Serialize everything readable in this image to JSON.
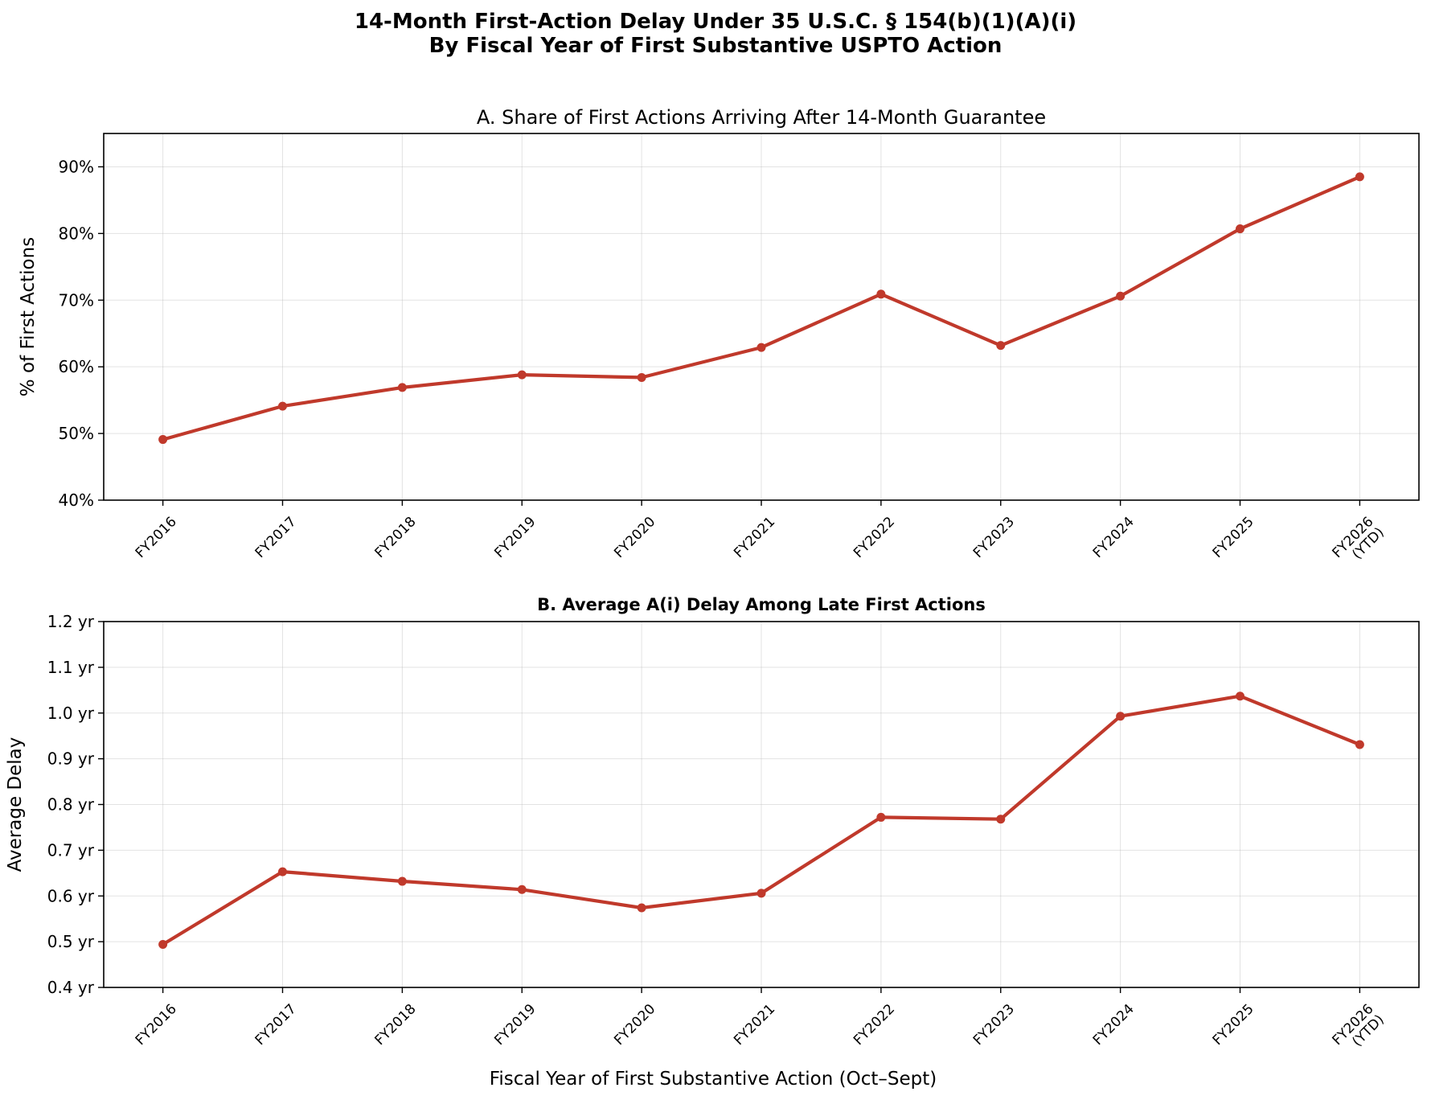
{
  "figure": {
    "title_line1": "14-Month First-Action Delay Under 35 U.S.C. § 154(b)(1)(A)(i)",
    "title_line2": "By Fiscal Year of First Substantive USPTO Action",
    "line_color": "#c0392b"
  },
  "chart_data": [
    {
      "type": "line",
      "title": "A. Share of First Actions Arriving After 14-Month Guarantee",
      "title_bold": false,
      "xlabel": "",
      "ylabel": "% of First Actions",
      "categories": [
        "FY2016",
        "FY2017",
        "FY2018",
        "FY2019",
        "FY2020",
        "FY2021",
        "FY2022",
        "FY2023",
        "FY2024",
        "FY2025",
        "FY2026\n(YTD)"
      ],
      "values": [
        49.1,
        54.1,
        56.9,
        58.8,
        58.4,
        62.9,
        70.9,
        63.2,
        70.6,
        80.7,
        88.5
      ],
      "ylim": [
        40,
        95
      ],
      "yticks": [
        40,
        50,
        60,
        70,
        80,
        90
      ],
      "ytick_labels": [
        "40%",
        "50%",
        "60%",
        "70%",
        "80%",
        "90%"
      ],
      "grid": true,
      "legend": "none"
    },
    {
      "type": "line",
      "title": "B. Average A(i) Delay Among Late First Actions",
      "title_bold": true,
      "xlabel": "Fiscal Year of First Substantive Action (Oct–Sept)",
      "ylabel": "Average Delay",
      "categories": [
        "FY2016",
        "FY2017",
        "FY2018",
        "FY2019",
        "FY2020",
        "FY2021",
        "FY2022",
        "FY2023",
        "FY2024",
        "FY2025",
        "FY2026\n(YTD)"
      ],
      "values": [
        0.494,
        0.653,
        0.632,
        0.614,
        0.574,
        0.606,
        0.772,
        0.768,
        0.993,
        1.037,
        0.931
      ],
      "ylim": [
        0.4,
        1.2
      ],
      "yticks": [
        0.4,
        0.5,
        0.6,
        0.7,
        0.8,
        0.9,
        1.0,
        1.1,
        1.2
      ],
      "ytick_labels": [
        "0.4 yr",
        "0.5 yr",
        "0.6 yr",
        "0.7 yr",
        "0.8 yr",
        "0.9 yr",
        "1.0 yr",
        "1.1 yr",
        "1.2 yr"
      ],
      "grid": true,
      "legend": "none"
    }
  ]
}
